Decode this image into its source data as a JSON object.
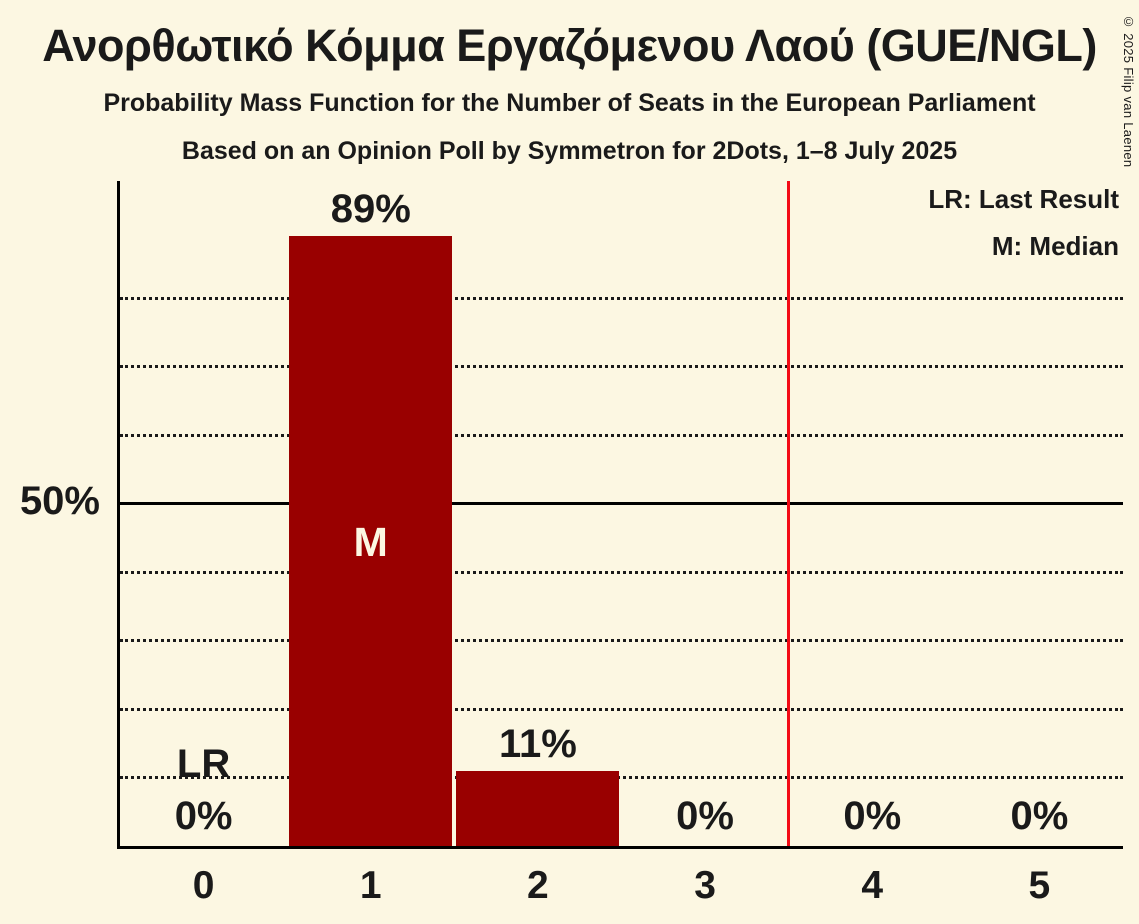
{
  "title": "Ανορθωτικό Κόμμα Εργαζόμενου Λαού (GUE/NGL)",
  "subtitle": "Probability Mass Function for the Number of Seats in the European Parliament",
  "poll_line": "Based on an Opinion Poll by Symmetron for 2Dots, 1–8 July 2025",
  "copyright": "© 2025 Filip van Laenen",
  "legend": {
    "lr": "LR: Last Result",
    "m": "M: Median"
  },
  "y_axis": {
    "tick_label": "50%"
  },
  "colors": {
    "background": "#fcf7e2",
    "bar": "#990000",
    "red_line": "#f30b16",
    "text": "#1a1a1a",
    "median_text": "#fcf7e2"
  },
  "chart_data": {
    "type": "bar",
    "categories": [
      "0",
      "1",
      "2",
      "3",
      "4",
      "5"
    ],
    "values": [
      0,
      89,
      11,
      0,
      0,
      0
    ],
    "value_labels": [
      "0%",
      "89%",
      "11%",
      "0%",
      "0%",
      "0%"
    ],
    "ylim": [
      0,
      97
    ],
    "gridlines_pct": [
      10,
      20,
      30,
      40,
      50,
      60,
      70,
      80
    ],
    "solid_gridline_pct": 50,
    "y_tick_labels": {
      "50": "50%"
    },
    "grid_style": "dotted-horizontal",
    "legend": [
      "LR: Last Result",
      "M: Median"
    ],
    "legend_position": "top-right",
    "median_marker": "M",
    "median_category_index": 1,
    "lr_marker": "LR",
    "lr_category_index": 0,
    "red_line_x": 3.5
  }
}
